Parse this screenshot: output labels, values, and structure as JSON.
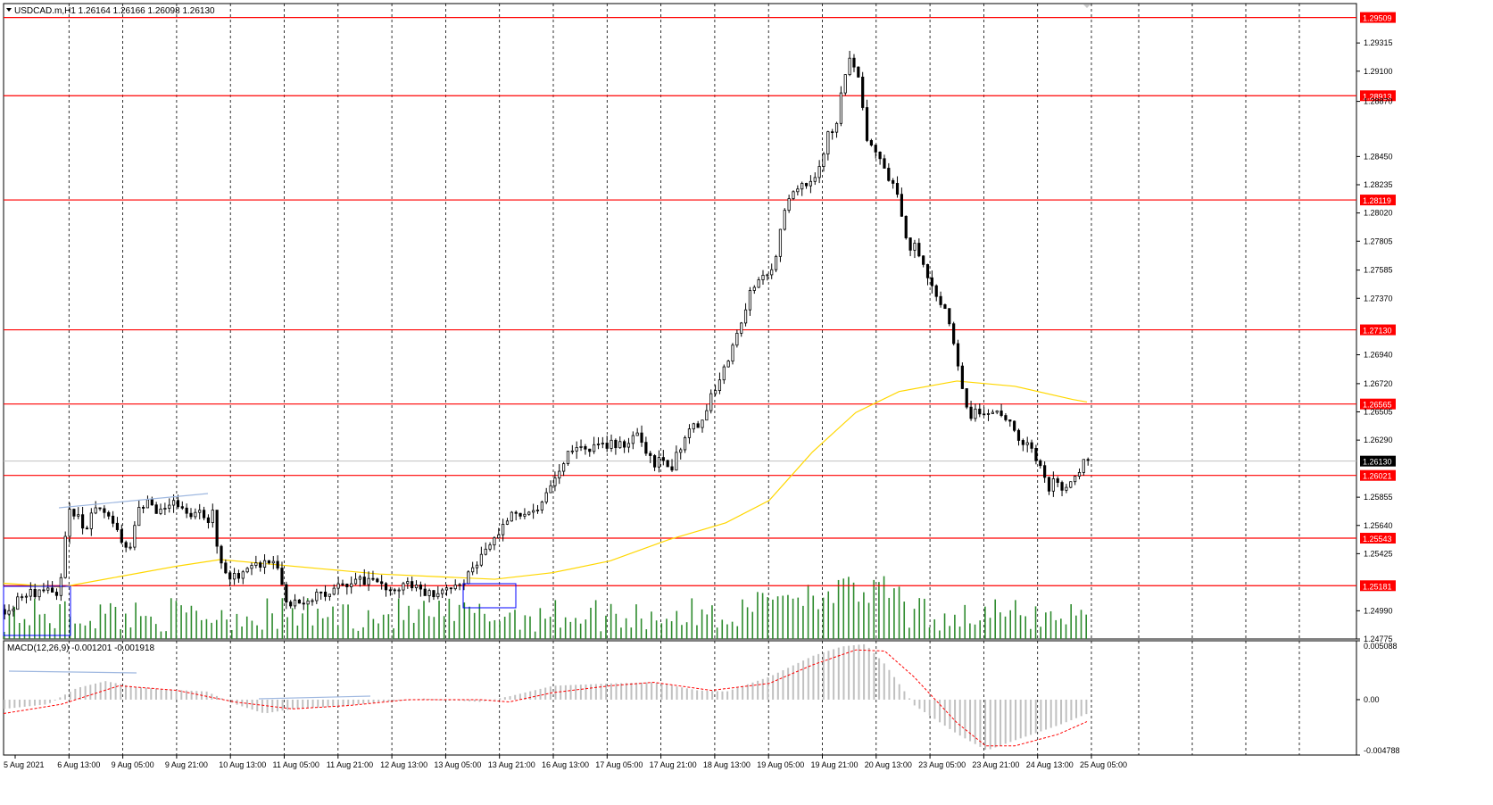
{
  "header": {
    "main_title": "USDCAD.m,H1  1.26164 1.26166 1.26098 1.26130",
    "macd_title": "MACD(12,26,9) -0.001201 -0.001918"
  },
  "colors": {
    "background": "#ffffff",
    "candle": "#000000",
    "resistance_line": "#ff0000",
    "resistance_label_bg": "#ff0000",
    "moving_average": "#ffd700",
    "volume": "#2e8b2e",
    "macd_histogram": "#c0c0c0",
    "macd_signal": "#ff0000",
    "current_price_label_bg": "#000000",
    "grid": "#000000",
    "box": "#0000ff"
  },
  "chart_data": [
    {
      "type": "candlestick",
      "symbol": "USDCAD.m",
      "timeframe": "H1",
      "ohlc_last": {
        "open": 1.26164,
        "high": 1.26166,
        "low": 1.26098,
        "close": 1.2613
      },
      "current_price": "1.26130",
      "ylim": [
        1.24775,
        1.29615
      ],
      "y_ticks": [
        "1.29315",
        "1.29100",
        "1.28870",
        "1.28450",
        "1.28235",
        "1.28020",
        "1.27805",
        "1.27585",
        "1.27370",
        "1.26940",
        "1.26720",
        "1.26505",
        "1.26290",
        "1.25855",
        "1.25640",
        "1.25425",
        "1.24990",
        "1.24775"
      ],
      "x_tick_labels": [
        "5 Aug 2021",
        "6 Aug 13:00",
        "9 Aug 05:00",
        "9 Aug 21:00",
        "10 Aug 13:00",
        "11 Aug 05:00",
        "11 Aug 21:00",
        "12 Aug 13:00",
        "13 Aug 05:00",
        "13 Aug 21:00",
        "16 Aug 13:00",
        "17 Aug 05:00",
        "17 Aug 21:00",
        "18 Aug 13:00",
        "19 Aug 05:00",
        "19 Aug 21:00",
        "20 Aug 13:00",
        "23 Aug 05:00",
        "23 Aug 21:00",
        "24 Aug 13:00",
        "25 Aug 05:00"
      ],
      "horizontal_levels": [
        "1.29509",
        "1.28913",
        "1.28119",
        "1.27130",
        "1.26565",
        "1.26021",
        "1.25543",
        "1.25181"
      ],
      "close_path": [
        {
          "x": 0,
          "y": 1.25
        },
        {
          "x": 8,
          "y": 1.2505
        },
        {
          "x": 16,
          "y": 1.2512
        },
        {
          "x": 24,
          "y": 1.2514
        },
        {
          "x": 32,
          "y": 1.2513
        },
        {
          "x": 38,
          "y": 1.2515
        },
        {
          "x": 44,
          "y": 1.2575
        },
        {
          "x": 50,
          "y": 1.257
        },
        {
          "x": 56,
          "y": 1.256
        },
        {
          "x": 62,
          "y": 1.2575
        },
        {
          "x": 68,
          "y": 1.2578
        },
        {
          "x": 74,
          "y": 1.2565
        },
        {
          "x": 80,
          "y": 1.2555
        },
        {
          "x": 86,
          "y": 1.2545
        },
        {
          "x": 92,
          "y": 1.2578
        },
        {
          "x": 98,
          "y": 1.2582
        },
        {
          "x": 104,
          "y": 1.2575
        },
        {
          "x": 110,
          "y": 1.258
        },
        {
          "x": 116,
          "y": 1.2584
        },
        {
          "x": 122,
          "y": 1.2578
        },
        {
          "x": 128,
          "y": 1.2572
        },
        {
          "x": 134,
          "y": 1.2575
        },
        {
          "x": 140,
          "y": 1.2568
        },
        {
          "x": 144,
          "y": 1.2572
        },
        {
          "x": 148,
          "y": 1.254
        },
        {
          "x": 152,
          "y": 1.253
        },
        {
          "x": 156,
          "y": 1.2526
        },
        {
          "x": 162,
          "y": 1.2525
        },
        {
          "x": 168,
          "y": 1.253
        },
        {
          "x": 174,
          "y": 1.2532
        },
        {
          "x": 180,
          "y": 1.2535
        },
        {
          "x": 186,
          "y": 1.2538
        },
        {
          "x": 190,
          "y": 1.2528
        },
        {
          "x": 194,
          "y": 1.2508
        },
        {
          "x": 198,
          "y": 1.2502
        },
        {
          "x": 204,
          "y": 1.2505
        },
        {
          "x": 210,
          "y": 1.2508
        },
        {
          "x": 216,
          "y": 1.251
        },
        {
          "x": 222,
          "y": 1.2512
        },
        {
          "x": 228,
          "y": 1.2516
        },
        {
          "x": 234,
          "y": 1.2517
        },
        {
          "x": 240,
          "y": 1.2522
        },
        {
          "x": 246,
          "y": 1.2523
        },
        {
          "x": 252,
          "y": 1.252
        },
        {
          "x": 258,
          "y": 1.2522
        },
        {
          "x": 264,
          "y": 1.2518
        },
        {
          "x": 270,
          "y": 1.2516
        },
        {
          "x": 276,
          "y": 1.252
        },
        {
          "x": 282,
          "y": 1.2518
        },
        {
          "x": 288,
          "y": 1.2513
        },
        {
          "x": 294,
          "y": 1.2512
        },
        {
          "x": 300,
          "y": 1.251
        },
        {
          "x": 306,
          "y": 1.2514
        },
        {
          "x": 312,
          "y": 1.2516
        },
        {
          "x": 318,
          "y": 1.252
        },
        {
          "x": 324,
          "y": 1.253
        },
        {
          "x": 330,
          "y": 1.254
        },
        {
          "x": 336,
          "y": 1.255
        },
        {
          "x": 342,
          "y": 1.256
        },
        {
          "x": 348,
          "y": 1.257
        },
        {
          "x": 354,
          "y": 1.2575
        },
        {
          "x": 360,
          "y": 1.2574
        },
        {
          "x": 366,
          "y": 1.2572
        },
        {
          "x": 372,
          "y": 1.258
        },
        {
          "x": 378,
          "y": 1.2595
        },
        {
          "x": 384,
          "y": 1.2605
        },
        {
          "x": 390,
          "y": 1.2618
        },
        {
          "x": 396,
          "y": 1.2622
        },
        {
          "x": 402,
          "y": 1.262
        },
        {
          "x": 408,
          "y": 1.2626
        },
        {
          "x": 414,
          "y": 1.2624
        },
        {
          "x": 420,
          "y": 1.2628
        },
        {
          "x": 426,
          "y": 1.2625
        },
        {
          "x": 432,
          "y": 1.263
        },
        {
          "x": 438,
          "y": 1.2635
        },
        {
          "x": 444,
          "y": 1.2615
        },
        {
          "x": 450,
          "y": 1.2612
        },
        {
          "x": 456,
          "y": 1.2615
        },
        {
          "x": 462,
          "y": 1.261
        },
        {
          "x": 468,
          "y": 1.2625
        },
        {
          "x": 474,
          "y": 1.2635
        },
        {
          "x": 480,
          "y": 1.264
        },
        {
          "x": 486,
          "y": 1.2655
        },
        {
          "x": 492,
          "y": 1.267
        },
        {
          "x": 498,
          "y": 1.2685
        },
        {
          "x": 504,
          "y": 1.27
        },
        {
          "x": 510,
          "y": 1.272
        },
        {
          "x": 516,
          "y": 1.2742
        },
        {
          "x": 522,
          "y": 1.2748
        },
        {
          "x": 528,
          "y": 1.2755
        },
        {
          "x": 534,
          "y": 1.277
        },
        {
          "x": 540,
          "y": 1.2808
        },
        {
          "x": 546,
          "y": 1.2818
        },
        {
          "x": 552,
          "y": 1.2822
        },
        {
          "x": 558,
          "y": 1.2826
        },
        {
          "x": 564,
          "y": 1.2835
        },
        {
          "x": 570,
          "y": 1.286
        },
        {
          "x": 576,
          "y": 1.287
        },
        {
          "x": 580,
          "y": 1.29
        },
        {
          "x": 584,
          "y": 1.292
        },
        {
          "x": 588,
          "y": 1.2912
        },
        {
          "x": 592,
          "y": 1.2905
        },
        {
          "x": 596,
          "y": 1.286
        },
        {
          "x": 600,
          "y": 1.285
        },
        {
          "x": 606,
          "y": 1.284
        },
        {
          "x": 612,
          "y": 1.2828
        },
        {
          "x": 618,
          "y": 1.2815
        },
        {
          "x": 624,
          "y": 1.278
        },
        {
          "x": 630,
          "y": 1.2775
        },
        {
          "x": 636,
          "y": 1.2765
        },
        {
          "x": 642,
          "y": 1.2748
        },
        {
          "x": 648,
          "y": 1.2735
        },
        {
          "x": 654,
          "y": 1.2718
        },
        {
          "x": 660,
          "y": 1.2688
        },
        {
          "x": 664,
          "y": 1.2665
        },
        {
          "x": 668,
          "y": 1.2648
        },
        {
          "x": 674,
          "y": 1.265
        },
        {
          "x": 680,
          "y": 1.2652
        },
        {
          "x": 686,
          "y": 1.2655
        },
        {
          "x": 692,
          "y": 1.265
        },
        {
          "x": 698,
          "y": 1.2638
        },
        {
          "x": 704,
          "y": 1.263
        },
        {
          "x": 710,
          "y": 1.2625
        },
        {
          "x": 716,
          "y": 1.2612
        },
        {
          "x": 722,
          "y": 1.2592
        },
        {
          "x": 728,
          "y": 1.26
        },
        {
          "x": 734,
          "y": 1.2592
        },
        {
          "x": 740,
          "y": 1.2598
        },
        {
          "x": 746,
          "y": 1.261
        },
        {
          "x": 750,
          "y": 1.2613
        }
      ],
      "moving_average_path": [
        {
          "x": 0,
          "y": 1.252
        },
        {
          "x": 40,
          "y": 1.2517
        },
        {
          "x": 80,
          "y": 1.2525
        },
        {
          "x": 120,
          "y": 1.2533
        },
        {
          "x": 150,
          "y": 1.2538
        },
        {
          "x": 180,
          "y": 1.2535
        },
        {
          "x": 220,
          "y": 1.2531
        },
        {
          "x": 260,
          "y": 1.2527
        },
        {
          "x": 300,
          "y": 1.2525
        },
        {
          "x": 340,
          "y": 1.2523
        },
        {
          "x": 380,
          "y": 1.2528
        },
        {
          "x": 420,
          "y": 1.2537
        },
        {
          "x": 460,
          "y": 1.2553
        },
        {
          "x": 500,
          "y": 1.2566
        },
        {
          "x": 530,
          "y": 1.2583
        },
        {
          "x": 560,
          "y": 1.262
        },
        {
          "x": 590,
          "y": 1.265
        },
        {
          "x": 620,
          "y": 1.2666
        },
        {
          "x": 660,
          "y": 1.2674
        },
        {
          "x": 700,
          "y": 1.267
        },
        {
          "x": 740,
          "y": 1.266
        },
        {
          "x": 750,
          "y": 1.2658
        }
      ]
    },
    {
      "type": "bar",
      "name": "MACD(12,26,9)",
      "values_last": {
        "main": -0.001201,
        "signal": -0.001918
      },
      "ylim": [
        -0.004788,
        0.005088
      ],
      "y_ticks": [
        "0.005088",
        "0.00",
        "-0.004788"
      ],
      "histogram_path": [
        {
          "x": 0,
          "y": -0.0008
        },
        {
          "x": 30,
          "y": -0.0004
        },
        {
          "x": 50,
          "y": 0.001
        },
        {
          "x": 70,
          "y": 0.0016
        },
        {
          "x": 90,
          "y": 0.0011
        },
        {
          "x": 110,
          "y": 0.0009
        },
        {
          "x": 140,
          "y": 0.0007
        },
        {
          "x": 160,
          "y": -0.0004
        },
        {
          "x": 180,
          "y": -0.0012
        },
        {
          "x": 200,
          "y": -0.0008
        },
        {
          "x": 230,
          "y": -0.0006
        },
        {
          "x": 260,
          "y": -0.0002
        },
        {
          "x": 290,
          "y": 0.0001
        },
        {
          "x": 330,
          "y": -0.0002
        },
        {
          "x": 350,
          "y": 0.0003
        },
        {
          "x": 380,
          "y": 0.0012
        },
        {
          "x": 420,
          "y": 0.0014
        },
        {
          "x": 450,
          "y": 0.0015
        },
        {
          "x": 480,
          "y": 0.0008
        },
        {
          "x": 500,
          "y": 0.0007
        },
        {
          "x": 530,
          "y": 0.002
        },
        {
          "x": 560,
          "y": 0.0038
        },
        {
          "x": 580,
          "y": 0.0046
        },
        {
          "x": 596,
          "y": 0.0048
        },
        {
          "x": 610,
          "y": 0.003
        },
        {
          "x": 630,
          "y": -0.0005
        },
        {
          "x": 660,
          "y": -0.003
        },
        {
          "x": 680,
          "y": -0.0044
        },
        {
          "x": 700,
          "y": -0.0035
        },
        {
          "x": 730,
          "y": -0.0022
        },
        {
          "x": 750,
          "y": -0.0012
        }
      ],
      "signal_path": [
        {
          "x": 0,
          "y": -0.0012
        },
        {
          "x": 40,
          "y": -0.0004
        },
        {
          "x": 80,
          "y": 0.0012
        },
        {
          "x": 120,
          "y": 0.0008
        },
        {
          "x": 160,
          "y": -0.0002
        },
        {
          "x": 200,
          "y": -0.0008
        },
        {
          "x": 240,
          "y": -0.0005
        },
        {
          "x": 280,
          "y": 0.0
        },
        {
          "x": 330,
          "y": 0.0
        },
        {
          "x": 350,
          "y": -0.0002
        },
        {
          "x": 380,
          "y": 0.0006
        },
        {
          "x": 420,
          "y": 0.0012
        },
        {
          "x": 450,
          "y": 0.0015
        },
        {
          "x": 490,
          "y": 0.0008
        },
        {
          "x": 530,
          "y": 0.0014
        },
        {
          "x": 560,
          "y": 0.003
        },
        {
          "x": 590,
          "y": 0.0043
        },
        {
          "x": 610,
          "y": 0.0042
        },
        {
          "x": 630,
          "y": 0.002
        },
        {
          "x": 660,
          "y": -0.002
        },
        {
          "x": 680,
          "y": -0.004
        },
        {
          "x": 700,
          "y": -0.004
        },
        {
          "x": 730,
          "y": -0.003
        },
        {
          "x": 750,
          "y": -0.0019
        }
      ]
    }
  ]
}
